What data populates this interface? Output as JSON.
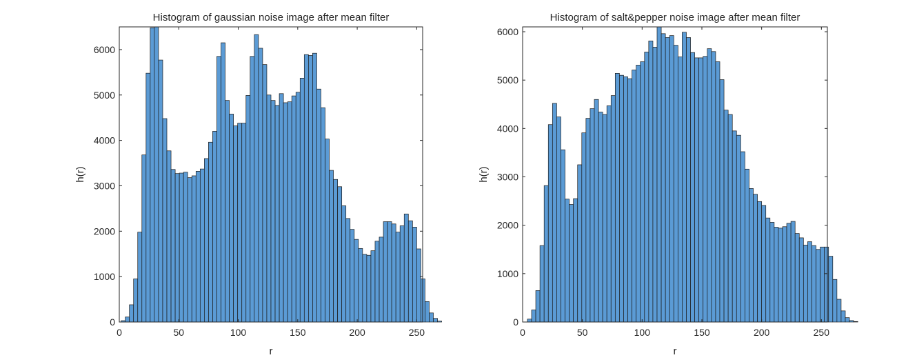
{
  "colors": {
    "bar_fill": "#5b9bd5",
    "bar_edge": "#1a1a1a",
    "axes": "#262626",
    "background": "#ffffff"
  },
  "chart_data": [
    {
      "type": "bar",
      "title": "Histogram of gaussian noise image after mean filter",
      "xlabel": "r",
      "ylabel": "h(r)",
      "xlim": [
        0,
        255
      ],
      "ylim": [
        0,
        6500
      ],
      "xticks": [
        0,
        50,
        100,
        150,
        200,
        250
      ],
      "yticks": [
        0,
        1000,
        2000,
        3000,
        4000,
        5000,
        6000
      ],
      "bin_width": 3.5,
      "bin_start": 1.5,
      "grid": false,
      "legend": "none",
      "values": [
        30,
        110,
        380,
        950,
        1980,
        3680,
        5480,
        6480,
        6550,
        5770,
        4480,
        3770,
        3360,
        3270,
        3280,
        3300,
        3180,
        3220,
        3320,
        3370,
        3600,
        3960,
        4200,
        5850,
        6150,
        4880,
        4580,
        4320,
        4380,
        4380,
        4990,
        5850,
        6330,
        6030,
        5670,
        5000,
        4880,
        4770,
        5030,
        4830,
        4850,
        4980,
        5060,
        5370,
        5890,
        5870,
        5920,
        5130,
        4720,
        4030,
        3340,
        3140,
        2980,
        2560,
        2280,
        2040,
        1820,
        1620,
        1490,
        1470,
        1570,
        1780,
        1870,
        2210,
        2210,
        2160,
        1980,
        2120,
        2380,
        2230,
        2090,
        1610,
        950,
        450,
        200,
        80,
        20,
        0,
        0
      ]
    },
    {
      "type": "bar",
      "title": "Histogram of salt&pepper noise image after mean filter",
      "xlabel": "r",
      "ylabel": "h(r)",
      "xlim": [
        0,
        255
      ],
      "ylim": [
        0,
        6100
      ],
      "xticks": [
        0,
        50,
        100,
        150,
        200,
        250
      ],
      "yticks": [
        0,
        1000,
        2000,
        3000,
        4000,
        5000,
        6000
      ],
      "bin_width": 3.5,
      "bin_start": 4,
      "grid": false,
      "legend": "none",
      "values": [
        60,
        250,
        650,
        1580,
        2820,
        4080,
        4520,
        4240,
        3560,
        2540,
        2430,
        2550,
        3250,
        3910,
        4210,
        4410,
        4600,
        4340,
        4290,
        4470,
        4680,
        5140,
        5100,
        5070,
        5030,
        5210,
        5310,
        5380,
        5580,
        5810,
        5680,
        6100,
        5960,
        5880,
        5920,
        5720,
        5480,
        5990,
        5880,
        5570,
        5460,
        5460,
        5490,
        5650,
        5590,
        5380,
        5010,
        4380,
        4290,
        3950,
        3860,
        3520,
        3160,
        2760,
        2640,
        2490,
        2410,
        2150,
        2060,
        1960,
        1940,
        1970,
        2040,
        2080,
        1830,
        1740,
        1590,
        1660,
        1580,
        1500,
        1550,
        1550,
        1360,
        880,
        470,
        230,
        90,
        30,
        10,
        0
      ]
    }
  ]
}
